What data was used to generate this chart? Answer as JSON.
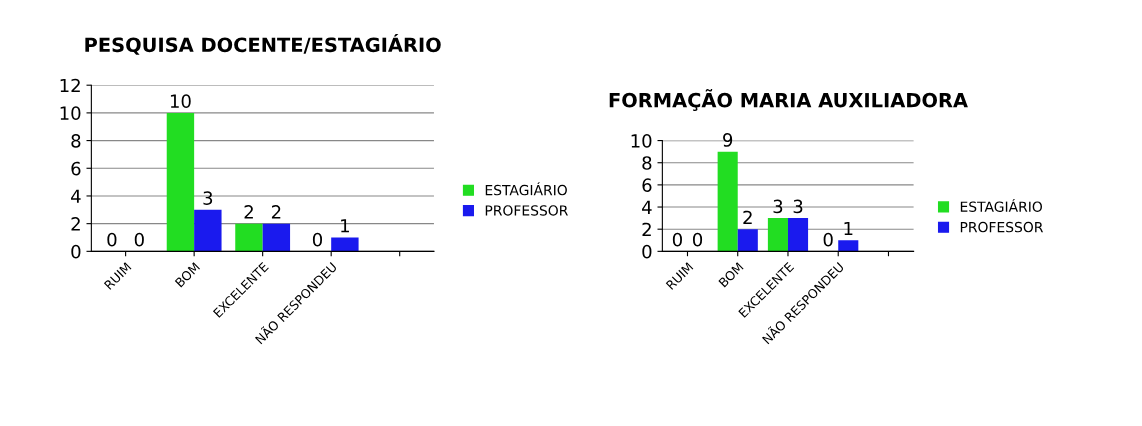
{
  "chart_data": [
    {
      "type": "bar",
      "title": "PESQUISA DOCENTE/ESTAGIÁRIO",
      "categories": [
        "RUIM",
        "BOM",
        "EXCELENTE",
        "NÃO RESPONDEU",
        null
      ],
      "series": [
        {
          "name": "ESTAGIÁRIO",
          "color": "#22dd22",
          "values": [
            0,
            10,
            2,
            0,
            null
          ]
        },
        {
          "name": "PROFESSOR",
          "color": "#1a1aee",
          "values": [
            0,
            3,
            2,
            1,
            null
          ]
        }
      ],
      "ylim": [
        0,
        12
      ],
      "yticks": [
        0,
        2,
        4,
        6,
        8,
        10,
        12
      ],
      "grid": "y",
      "legend": "right",
      "data_labels": true
    },
    {
      "type": "bar",
      "title": "FORMAÇÃO MARIA AUXILIADORA",
      "categories": [
        "RUIM",
        "BOM",
        "EXCELENTE",
        "NÃO RESPONDEU",
        null
      ],
      "series": [
        {
          "name": "ESTAGIÁRIO",
          "color": "#22dd22",
          "values": [
            0,
            9,
            3,
            0,
            null
          ]
        },
        {
          "name": "PROFESSOR",
          "color": "#1a1aee",
          "values": [
            0,
            2,
            3,
            1,
            null
          ]
        }
      ],
      "ylim": [
        0,
        10
      ],
      "yticks": [
        0,
        2,
        4,
        6,
        8,
        10
      ],
      "grid": "y",
      "legend": "right",
      "data_labels": true
    }
  ]
}
